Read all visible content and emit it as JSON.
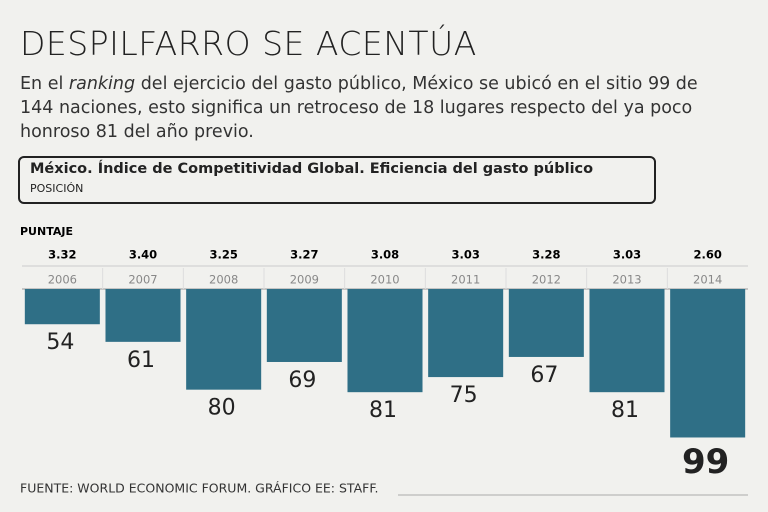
{
  "chart_data": {
    "type": "bar",
    "title": "DESPILFARRO SE ACENTÚA",
    "subtitle_parts": [
      "En el ",
      "ranking",
      " del ejercicio del gasto público, México se ubicó en el sitio 99 de 144 naciones, esto significa un retroceso de 18 lugares respecto del ya poco honroso 81 del año previo."
    ],
    "box_title": "México. Índice de Competitividad Global. Eficiencia del gasto público",
    "box_subtitle": "POSICIÓN",
    "score_title": "PUNTAJE",
    "categories": [
      "2006",
      "2007",
      "2008",
      "2009",
      "2010",
      "2011",
      "2012",
      "2013",
      "2014"
    ],
    "scores": [
      3.32,
      3.4,
      3.25,
      3.27,
      3.08,
      3.03,
      3.28,
      3.03,
      2.6
    ],
    "score_labels": [
      "3.32",
      "3.40",
      "3.25",
      "3.27",
      "3.08",
      "3.03",
      "3.28",
      "3.03",
      "2.60"
    ],
    "values": [
      54,
      61,
      80,
      69,
      81,
      75,
      67,
      81,
      99
    ],
    "color": "#2f6f86",
    "ylim": [
      40,
      100
    ],
    "inverted": true,
    "source": "FUENTE: WORLD ECONOMIC FORUM. GRÁFICO EE: STAFF."
  }
}
